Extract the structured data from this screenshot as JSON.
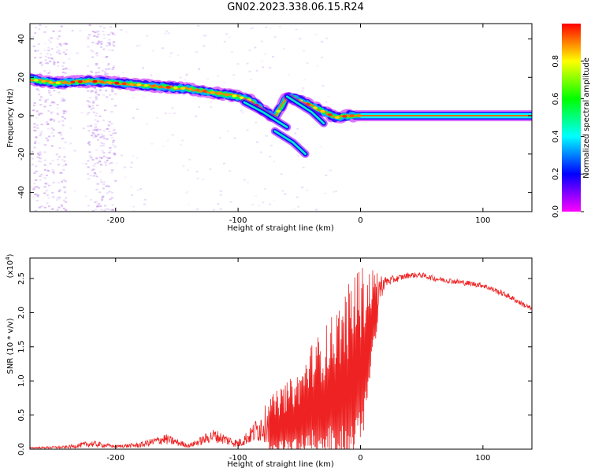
{
  "title": "GN02.2023.338.06.15.R24",
  "colorbar": {
    "label": "Normalized spectral amplitude",
    "ticks": [
      "0.0",
      "0.2",
      "0.4",
      "0.6",
      "0.8"
    ],
    "tick_values": [
      0.0,
      0.2,
      0.4,
      0.6,
      0.8
    ],
    "colors": [
      "#ff00ff",
      "#0000ff",
      "#00ffff",
      "#00ff00",
      "#ffff00",
      "#ff0000"
    ]
  },
  "chart_data": [
    {
      "type": "heatmap",
      "xlabel": "Height of straight line (km)",
      "ylabel": "Frequency (Hz)",
      "xlim": [
        -270,
        140
      ],
      "ylim": [
        -50,
        48
      ],
      "x_ticks": [
        -200,
        -100,
        0,
        100
      ],
      "x_tick_labels": [
        "-200",
        "-100",
        "0",
        "100"
      ],
      "y_ticks": [
        -40,
        -20,
        0,
        20,
        40
      ],
      "y_tick_labels": [
        "-40",
        "-20",
        "0",
        "20",
        "40"
      ],
      "ridge": {
        "x": [
          -270,
          -250,
          -220,
          -200,
          -180,
          -160,
          -140,
          -120,
          -100,
          -90,
          -80,
          -70,
          -60,
          -50,
          -40,
          -30,
          -20,
          -10,
          0,
          140
        ],
        "y": [
          19,
          17,
          18,
          17,
          16,
          15,
          14,
          12,
          10,
          8,
          3,
          -1,
          10,
          8,
          5,
          2,
          -1,
          0,
          0,
          0
        ]
      },
      "secondary_branches": [
        {
          "x": [
            -95,
            -80,
            -70,
            -60
          ],
          "y": [
            7,
            2,
            -2,
            -6
          ]
        },
        {
          "x": [
            -60,
            -50,
            -40,
            -30
          ],
          "y": [
            10,
            6,
            2,
            -4
          ]
        },
        {
          "x": [
            -70,
            -55,
            -45
          ],
          "y": [
            -8,
            -14,
            -20
          ]
        }
      ],
      "noise_columns_x": [
        -265,
        -255,
        -245,
        -220,
        -213,
        -205
      ],
      "grid": false
    },
    {
      "type": "line",
      "xlabel": "Height of straight line (km)",
      "ylabel": "SNR (10 * v/v)",
      "multiplier_label": "(x10",
      "multiplier_exp": "4",
      "xlim": [
        -270,
        140
      ],
      "ylim": [
        0,
        2.8
      ],
      "x_ticks": [
        -200,
        -100,
        0,
        100
      ],
      "x_tick_labels": [
        "-200",
        "-100",
        "0",
        "100"
      ],
      "y_ticks": [
        0.0,
        0.5,
        1.0,
        1.5,
        2.0,
        2.5
      ],
      "y_tick_labels": [
        "0.0",
        "0.5",
        "1.0",
        "1.5",
        "2.0",
        "2.5"
      ],
      "series": [
        {
          "color": "#ee2222",
          "x": [
            -270,
            -240,
            -220,
            -200,
            -180,
            -160,
            -140,
            -120,
            -100,
            -90,
            -80,
            -70,
            -60,
            -50,
            -40,
            -30,
            -20,
            -10,
            -5,
            0,
            5,
            10,
            15,
            20,
            30,
            40,
            50,
            60,
            80,
            100,
            120,
            140
          ],
          "y": [
            0.02,
            0.03,
            0.08,
            0.04,
            0.06,
            0.15,
            0.05,
            0.2,
            0.08,
            0.2,
            0.35,
            0.45,
            0.55,
            0.65,
            0.9,
            1.0,
            1.2,
            1.3,
            1.5,
            1.6,
            1.8,
            2.1,
            2.35,
            2.45,
            2.5,
            2.55,
            2.55,
            2.5,
            2.45,
            2.4,
            2.25,
            2.05
          ],
          "spread": [
            0.01,
            0.02,
            0.05,
            0.02,
            0.04,
            0.08,
            0.03,
            0.1,
            0.06,
            0.12,
            0.25,
            0.35,
            0.4,
            0.45,
            0.6,
            0.7,
            0.8,
            1.0,
            1.1,
            1.0,
            0.8,
            0.5,
            0.25,
            0.08,
            0.05,
            0.04,
            0.04,
            0.04,
            0.04,
            0.04,
            0.04,
            0.04
          ]
        }
      ],
      "grid": false
    }
  ]
}
